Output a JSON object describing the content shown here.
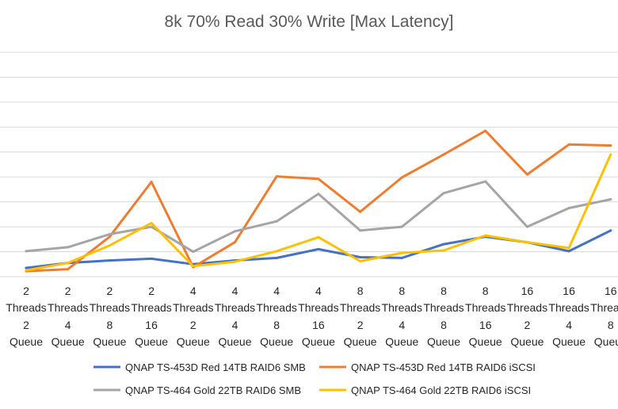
{
  "chart_data": {
    "type": "line",
    "title": "8k 70% Read 30% Write [Max Latency]",
    "xlabel": "",
    "ylabel": "",
    "ylim": [
      0,
      9
    ],
    "grid": true,
    "legend_position": "bottom",
    "categories": [
      [
        "2",
        "Threads",
        "2",
        "Queue"
      ],
      [
        "2",
        "Threads",
        "4",
        "Queue"
      ],
      [
        "2",
        "Threads",
        "8",
        "Queue"
      ],
      [
        "2",
        "Threads",
        "16",
        "Queue"
      ],
      [
        "4",
        "Threads",
        "2",
        "Queue"
      ],
      [
        "4",
        "Threads",
        "4",
        "Queue"
      ],
      [
        "4",
        "Threads",
        "8",
        "Queue"
      ],
      [
        "4",
        "Threads",
        "16",
        "Queue"
      ],
      [
        "8",
        "Threads",
        "2",
        "Queue"
      ],
      [
        "8",
        "Threads",
        "4",
        "Queue"
      ],
      [
        "8",
        "Threads",
        "8",
        "Queue"
      ],
      [
        "8",
        "Threads",
        "16",
        "Queue"
      ],
      [
        "16",
        "Threads",
        "2",
        "Queue"
      ],
      [
        "16",
        "Threads",
        "4",
        "Queue"
      ],
      [
        "16",
        "Threads",
        "8",
        "Queue"
      ]
    ],
    "series": [
      {
        "name": "QNAP TS-453D Red 14TB RAID6 SMB",
        "color": "#4472C4",
        "values": [
          0.35,
          0.55,
          0.65,
          0.72,
          0.5,
          0.65,
          0.75,
          1.1,
          0.78,
          0.75,
          1.3,
          1.6,
          1.38,
          1.02,
          1.85
        ]
      },
      {
        "name": "QNAP TS-453D Red 14TB RAID6 iSCSI",
        "color": "#ED7D31",
        "values": [
          0.22,
          0.3,
          1.6,
          3.8,
          0.38,
          1.38,
          4.02,
          3.92,
          2.6,
          3.98,
          4.9,
          5.85,
          4.1,
          5.3,
          5.26
        ]
      },
      {
        "name": "QNAP TS-464 Gold 22TB RAID6 SMB",
        "color": "#A5A5A5",
        "values": [
          1.02,
          1.18,
          1.7,
          2.0,
          1.0,
          1.82,
          2.22,
          3.32,
          1.85,
          2.0,
          3.35,
          3.82,
          2.0,
          2.75,
          3.1
        ]
      },
      {
        "name": "QNAP TS-464 Gold 22TB RAID6 iSCSI",
        "color": "#FFC000",
        "values": [
          0.25,
          0.55,
          1.25,
          2.15,
          0.42,
          0.6,
          1.02,
          1.58,
          0.62,
          0.95,
          1.05,
          1.65,
          1.38,
          1.15,
          4.9
        ]
      }
    ]
  }
}
